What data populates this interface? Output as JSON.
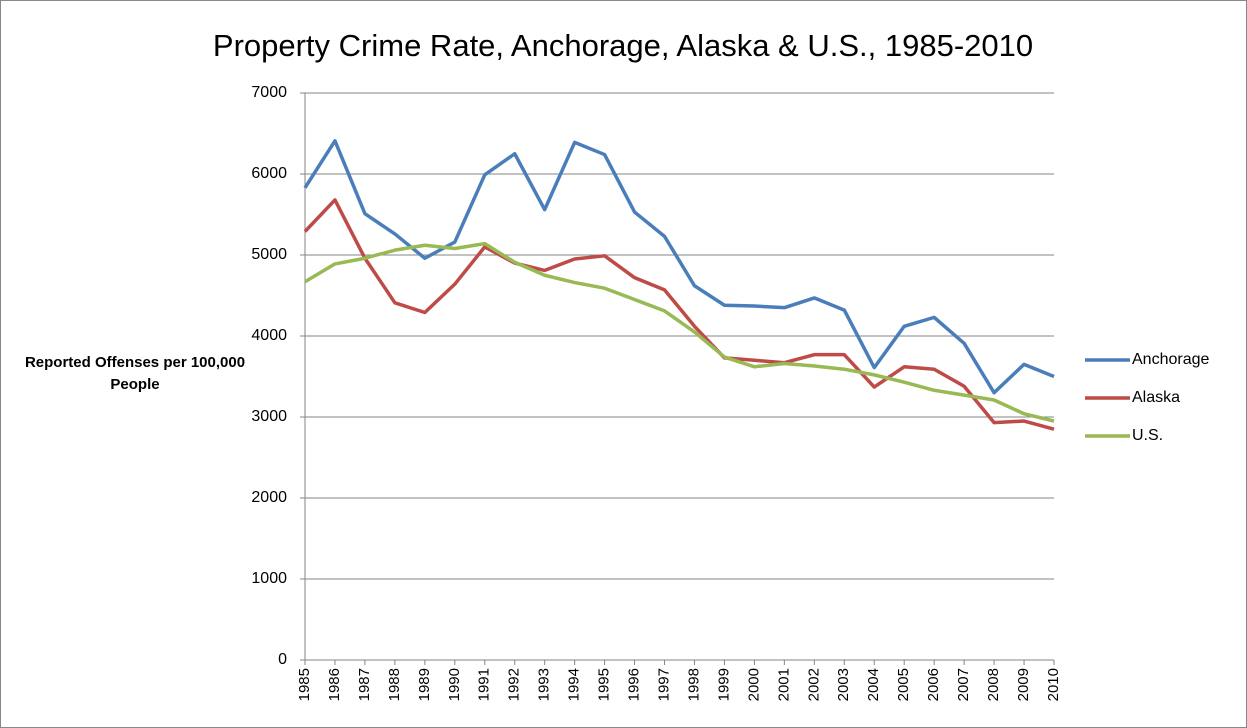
{
  "chart_data": {
    "type": "line",
    "title": "Property Crime Rate, Anchorage, Alaska & U.S., 1985-2010",
    "y_label": "Reported Offenses per 100,000 People",
    "categories": [
      "1985",
      "1986",
      "1987",
      "1988",
      "1989",
      "1990",
      "1991",
      "1992",
      "1993",
      "1994",
      "1995",
      "1996",
      "1997",
      "1998",
      "1999",
      "2000",
      "2001",
      "2002",
      "2003",
      "2004",
      "2005",
      "2006",
      "2007",
      "2008",
      "2009",
      "2010"
    ],
    "series": [
      {
        "name": "Anchorage",
        "color": "#4a7ebb",
        "values": [
          5830,
          6410,
          5510,
          5260,
          4960,
          5160,
          5990,
          6250,
          5560,
          6390,
          6240,
          5530,
          5230,
          4620,
          4380,
          4370,
          4350,
          4470,
          4320,
          3610,
          4120,
          4230,
          3910,
          3300,
          3650,
          3500
        ]
      },
      {
        "name": "Alaska",
        "color": "#be4b48",
        "values": [
          5290,
          5680,
          4960,
          4410,
          4290,
          4640,
          5100,
          4900,
          4810,
          4950,
          4990,
          4720,
          4570,
          4120,
          3730,
          3700,
          3670,
          3770,
          3770,
          3370,
          3620,
          3590,
          3380,
          2930,
          2950,
          2850
        ]
      },
      {
        "name": "U.S.",
        "color": "#98b954",
        "values": [
          4670,
          4890,
          4960,
          5060,
          5120,
          5080,
          5140,
          4910,
          4750,
          4660,
          4590,
          4450,
          4310,
          4050,
          3740,
          3620,
          3660,
          3630,
          3590,
          3520,
          3430,
          3330,
          3270,
          3210,
          3040,
          2950
        ]
      }
    ],
    "ylim": [
      0,
      7000
    ],
    "yticks": [
      0,
      1000,
      2000,
      3000,
      4000,
      5000,
      6000,
      7000
    ],
    "grid": true,
    "legend": "right"
  }
}
